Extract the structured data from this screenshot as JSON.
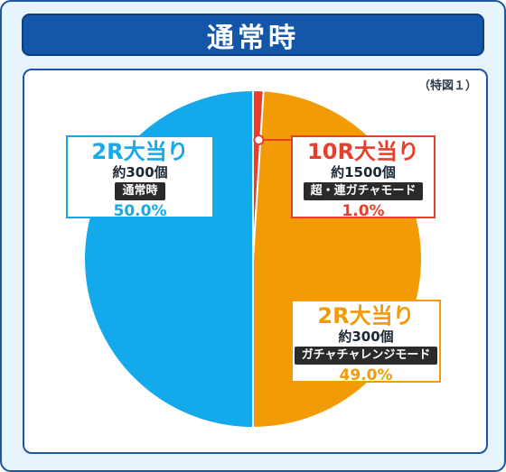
{
  "header": {
    "title": "通常時"
  },
  "figure_label": "（特図１）",
  "colors": {
    "blue": "#12aaeb",
    "orange": "#f39a07",
    "red": "#e83f2d"
  },
  "chart_data": {
    "type": "pie",
    "title": "通常時",
    "slices": [
      {
        "label": "10R大当り",
        "detail": "約1500個",
        "mode": "超・連ガチャモード",
        "value": 1.0,
        "value_label": "1.0%",
        "color": "#e83f2d"
      },
      {
        "label": "2R大当り",
        "detail": "約300個",
        "mode": "ガチャチャレンジモード",
        "value": 49.0,
        "value_label": "49.0%",
        "color": "#f39a07"
      },
      {
        "label": "2R大当り",
        "detail": "約300個",
        "mode": "通常時",
        "value": 50.0,
        "value_label": "50.0%",
        "color": "#12aaeb"
      }
    ]
  }
}
